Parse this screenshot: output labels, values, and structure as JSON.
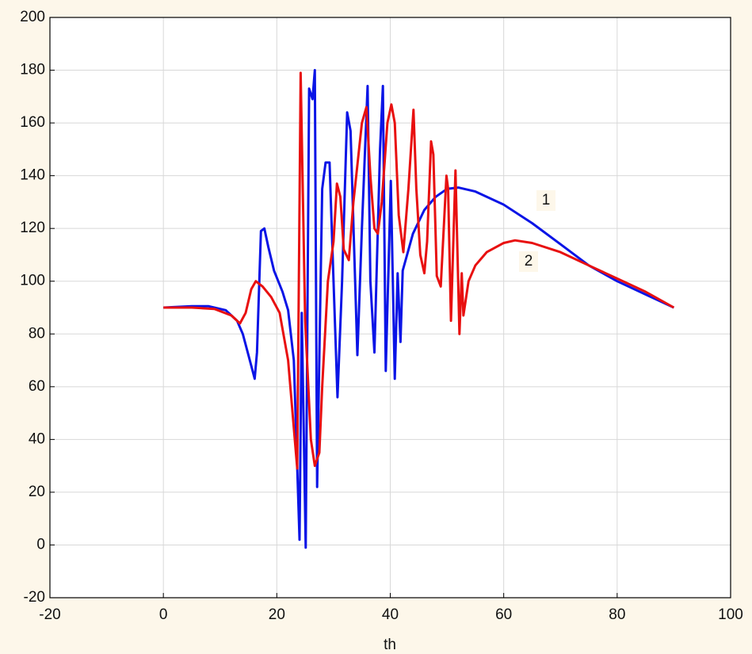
{
  "chart_data": {
    "type": "line",
    "x_label": "th",
    "xlim": [
      -20,
      100
    ],
    "xticks": [
      -20,
      0,
      20,
      40,
      60,
      80,
      100
    ],
    "ylim": [
      -20,
      200
    ],
    "yticks": [
      -20,
      0,
      20,
      40,
      60,
      80,
      100,
      120,
      140,
      160,
      180,
      200
    ],
    "grid": true,
    "annotations": [
      "1",
      "2"
    ],
    "series": [
      {
        "color": "#0a14e6",
        "x": [
          0,
          5,
          8,
          11,
          13,
          14,
          15,
          16.1,
          16.5,
          17.2,
          17.8,
          18.5,
          19.5,
          21,
          22,
          23,
          24,
          24.4,
          25.1,
          25.7,
          26.3,
          26.7,
          27.1,
          28,
          28.6,
          29.3,
          30,
          30.7,
          31.5,
          32.4,
          33,
          34.2,
          35,
          36,
          36.5,
          37.2,
          38.2,
          38.7,
          39.2,
          40.1,
          40.8,
          41.3,
          41.8,
          42.2,
          44,
          46,
          48,
          50,
          52,
          55,
          60,
          65,
          70,
          75,
          80,
          85,
          90
        ],
        "values": [
          90,
          90.5,
          90.5,
          89,
          85,
          80,
          72,
          63,
          73,
          119,
          120,
          113,
          104,
          96,
          89,
          70,
          2,
          88,
          -1,
          173,
          169,
          180,
          22,
          135,
          145,
          145,
          100,
          56,
          100,
          164,
          157,
          72,
          120,
          174,
          100,
          73,
          150,
          174,
          66,
          138,
          63,
          103,
          77,
          104,
          118,
          127,
          132,
          135,
          135.5,
          134,
          129,
          122,
          114,
          106,
          100,
          95,
          90
        ]
      },
      {
        "color": "#e81010",
        "x": [
          0,
          5,
          9,
          12,
          13.5,
          14.5,
          15.5,
          16.3,
          17.5,
          19,
          20.5,
          22,
          23.6,
          24.2,
          25,
          26,
          26.7,
          27.5,
          28,
          29,
          30,
          30.6,
          31.2,
          31.8,
          32.7,
          33.5,
          35,
          35.8,
          36.5,
          37.2,
          37.8,
          38.5,
          39.5,
          40.2,
          40.8,
          41.5,
          42.3,
          43.2,
          44.1,
          44.6,
          45.3,
          46,
          46.5,
          47.2,
          47.6,
          48.2,
          48.9,
          49.9,
          50.2,
          50.7,
          51.5,
          52.2,
          52.6,
          52.9,
          53.8,
          55,
          57,
          60,
          62,
          65,
          70,
          75,
          80,
          85,
          90
        ],
        "values": [
          90,
          90,
          89.5,
          87,
          84,
          88,
          97,
          100,
          98,
          94,
          88,
          70,
          29,
          179,
          85,
          40,
          30,
          35,
          60,
          100,
          115,
          137,
          132,
          112,
          108,
          130,
          160,
          166,
          140,
          120,
          118,
          130,
          160,
          167,
          160,
          125,
          111,
          135,
          165,
          135,
          110,
          103,
          115,
          153,
          148,
          102,
          98,
          140,
          135,
          85,
          142,
          80,
          103,
          87,
          100,
          106,
          111,
          114.5,
          115.5,
          114.5,
          111,
          106,
          101,
          96,
          90
        ]
      }
    ]
  }
}
